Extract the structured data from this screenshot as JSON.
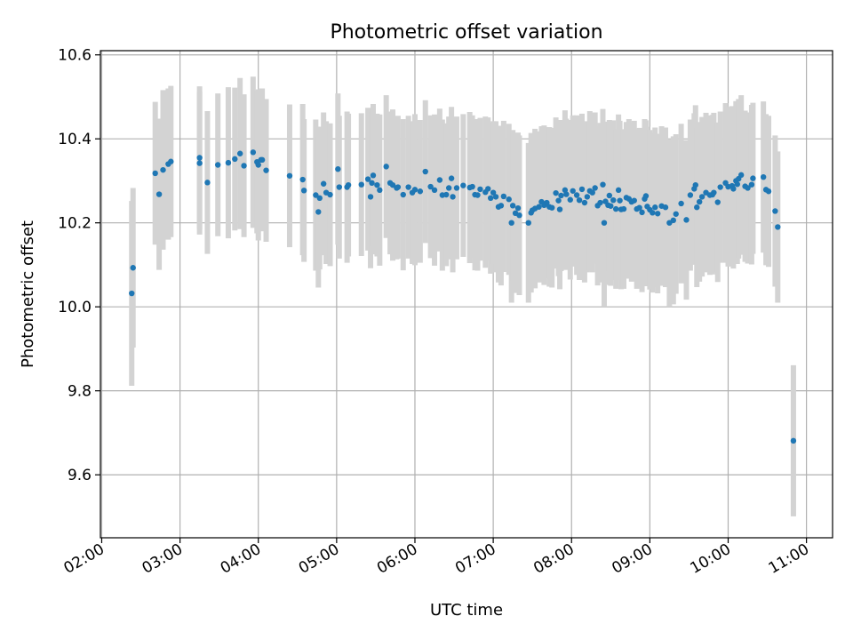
{
  "chart_data": {
    "type": "scatter",
    "title": "Photometric offset variation",
    "xlabel": "UTC time",
    "ylabel": "Photometric offset",
    "x_tick_labels": [
      "02:00",
      "03:00",
      "04:00",
      "05:00",
      "06:00",
      "07:00",
      "08:00",
      "09:00",
      "10:00",
      "11:00"
    ],
    "y_tick_labels": [
      "9.6",
      "9.8",
      "10.0",
      "10.2",
      "10.4",
      "10.6"
    ],
    "xlim": [
      "01:59",
      "11:20"
    ],
    "ylim": [
      9.45,
      10.61
    ],
    "grid": true,
    "marker_color": "#1f77b4",
    "errorbar_color": "#d3d3d3",
    "series": [
      {
        "x": [
          "02:23",
          "02:24",
          "02:41",
          "02:44",
          "02:47",
          "02:51",
          "02:53",
          "03:15",
          "03:15",
          "03:21",
          "03:29",
          "03:37",
          "03:42",
          "03:46",
          "03:49",
          "03:56",
          "03:59",
          "04:00",
          "04:02",
          "04:03",
          "04:06",
          "04:24",
          "04:34",
          "04:35",
          "04:44",
          "04:46",
          "04:47",
          "04:50",
          "04:52",
          "04:55",
          "05:01",
          "05:02",
          "05:08",
          "05:09",
          "05:19",
          "05:24",
          "05:26",
          "05:27",
          "05:28",
          "05:31",
          "05:33",
          "05:38",
          "05:41",
          "05:43",
          "05:46",
          "05:47",
          "05:51",
          "05:55",
          "05:58",
          "06:00",
          "06:04",
          "06:08",
          "06:12",
          "06:15",
          "06:19",
          "06:21",
          "06:24",
          "06:26",
          "06:28",
          "06:29",
          "06:32",
          "06:37",
          "06:42",
          "06:44",
          "06:46",
          "06:48",
          "06:50",
          "06:54",
          "06:56",
          "06:58",
          "07:00",
          "07:02",
          "07:04",
          "07:06",
          "07:08",
          "07:12",
          "07:14",
          "07:15",
          "07:17",
          "07:19",
          "07:20",
          "07:27",
          "07:29",
          "07:30",
          "07:32",
          "07:35",
          "07:37",
          "07:39",
          "07:41",
          "07:43",
          "07:45",
          "07:48",
          "07:50",
          "07:51",
          "07:52",
          "07:55",
          "07:56",
          "07:59",
          "08:01",
          "08:04",
          "08:06",
          "08:08",
          "08:10",
          "08:12",
          "08:14",
          "08:16",
          "08:18",
          "08:20",
          "08:22",
          "08:24",
          "08:25",
          "08:26",
          "08:28",
          "08:29",
          "08:30",
          "08:32",
          "08:34",
          "08:36",
          "08:37",
          "08:38",
          "08:40",
          "08:42",
          "08:44",
          "08:46",
          "08:48",
          "08:50",
          "08:52",
          "08:54",
          "08:56",
          "08:57",
          "08:58",
          "09:00",
          "09:02",
          "09:04",
          "09:06",
          "09:09",
          "09:12",
          "09:15",
          "09:18",
          "09:20",
          "09:24",
          "09:28",
          "09:31",
          "09:34",
          "09:35",
          "09:36",
          "09:38",
          "09:40",
          "09:43",
          "09:46",
          "09:48",
          "09:49",
          "09:52",
          "09:54",
          "09:58",
          "10:00",
          "10:03",
          "10:04",
          "10:06",
          "10:07",
          "10:08",
          "10:10",
          "10:13",
          "10:15",
          "10:18",
          "10:19",
          "10:27",
          "10:29",
          "10:31",
          "10:36",
          "10:38",
          "10:50"
        ],
        "y": [
          10.032,
          10.093,
          10.318,
          10.268,
          10.326,
          10.34,
          10.346,
          10.355,
          10.342,
          10.296,
          10.338,
          10.343,
          10.352,
          10.365,
          10.336,
          10.368,
          10.345,
          10.338,
          10.35,
          10.35,
          10.325,
          10.312,
          10.303,
          10.277,
          10.266,
          10.226,
          10.259,
          10.293,
          10.272,
          10.267,
          10.328,
          10.285,
          10.285,
          10.29,
          10.291,
          10.304,
          10.262,
          10.295,
          10.313,
          10.29,
          10.278,
          10.334,
          10.295,
          10.29,
          10.283,
          10.285,
          10.267,
          10.285,
          10.272,
          10.279,
          10.275,
          10.322,
          10.286,
          10.278,
          10.302,
          10.266,
          10.267,
          10.283,
          10.306,
          10.262,
          10.283,
          10.289,
          10.284,
          10.286,
          10.267,
          10.266,
          10.28,
          10.273,
          10.281,
          10.259,
          10.272,
          10.262,
          10.238,
          10.241,
          10.263,
          10.256,
          10.2,
          10.241,
          10.223,
          10.235,
          10.218,
          10.2,
          10.224,
          10.23,
          10.234,
          10.238,
          10.25,
          10.242,
          10.248,
          10.238,
          10.236,
          10.271,
          10.253,
          10.232,
          10.265,
          10.278,
          10.268,
          10.255,
          10.276,
          10.266,
          10.254,
          10.28,
          10.248,
          10.262,
          10.276,
          10.272,
          10.283,
          10.241,
          10.248,
          10.291,
          10.2,
          10.251,
          10.242,
          10.265,
          10.24,
          10.254,
          10.233,
          10.278,
          10.253,
          10.232,
          10.233,
          10.26,
          10.257,
          10.25,
          10.253,
          10.233,
          10.236,
          10.225,
          10.257,
          10.264,
          10.239,
          10.231,
          10.224,
          10.237,
          10.222,
          10.24,
          10.237,
          10.2,
          10.206,
          10.221,
          10.246,
          10.207,
          10.266,
          10.281,
          10.29,
          10.237,
          10.25,
          10.262,
          10.272,
          10.266,
          10.267,
          10.272,
          10.249,
          10.285,
          10.295,
          10.286,
          10.288,
          10.281,
          10.3,
          10.292,
          10.305,
          10.314,
          10.287,
          10.283,
          10.291,
          10.306,
          10.309,
          10.279,
          10.275,
          10.228,
          10.19,
          9.681
        ],
        "yerr": [
          0.22,
          0.19,
          0.17,
          0.18,
          0.19,
          0.18,
          0.18,
          0.17,
          0.17,
          0.17,
          0.17,
          0.18,
          0.17,
          0.18,
          0.17,
          0.18,
          0.17,
          0.18,
          0.17,
          0.17,
          0.17,
          0.17,
          0.18,
          0.17,
          0.18,
          0.18,
          0.17,
          0.17,
          0.17,
          0.17,
          0.18,
          0.17,
          0.18,
          0.17,
          0.17,
          0.17,
          0.17,
          0.17,
          0.17,
          0.17,
          0.18,
          0.17,
          0.17,
          0.18,
          0.17,
          0.17,
          0.18,
          0.17,
          0.17,
          0.18,
          0.17,
          0.17,
          0.17,
          0.18,
          0.17,
          0.18,
          0.17,
          0.17,
          0.17,
          0.18,
          0.17,
          0.17,
          0.18,
          0.17,
          0.18,
          0.18,
          0.17,
          0.18,
          0.17,
          0.18,
          0.17,
          0.18,
          0.18,
          0.19,
          0.18,
          0.18,
          0.19,
          0.18,
          0.19,
          0.18,
          0.19,
          0.19,
          0.19,
          0.18,
          0.19,
          0.18,
          0.18,
          0.19,
          0.18,
          0.19,
          0.19,
          0.18,
          0.18,
          0.19,
          0.18,
          0.19,
          0.18,
          0.19,
          0.18,
          0.19,
          0.19,
          0.18,
          0.19,
          0.18,
          0.19,
          0.19,
          0.18,
          0.19,
          0.19,
          0.18,
          0.2,
          0.19,
          0.19,
          0.18,
          0.19,
          0.19,
          0.19,
          0.18,
          0.19,
          0.19,
          0.19,
          0.18,
          0.19,
          0.19,
          0.19,
          0.19,
          0.19,
          0.19,
          0.19,
          0.18,
          0.19,
          0.19,
          0.19,
          0.19,
          0.19,
          0.19,
          0.19,
          0.2,
          0.2,
          0.19,
          0.19,
          0.19,
          0.18,
          0.18,
          0.19,
          0.19,
          0.19,
          0.19,
          0.19,
          0.19,
          0.19,
          0.19,
          0.19,
          0.18,
          0.19,
          0.19,
          0.19,
          0.19,
          0.19,
          0.19,
          0.19,
          0.19,
          0.18,
          0.18,
          0.19,
          0.18,
          0.18,
          0.18,
          0.18,
          0.18,
          0.18,
          0.18
        ]
      }
    ]
  }
}
